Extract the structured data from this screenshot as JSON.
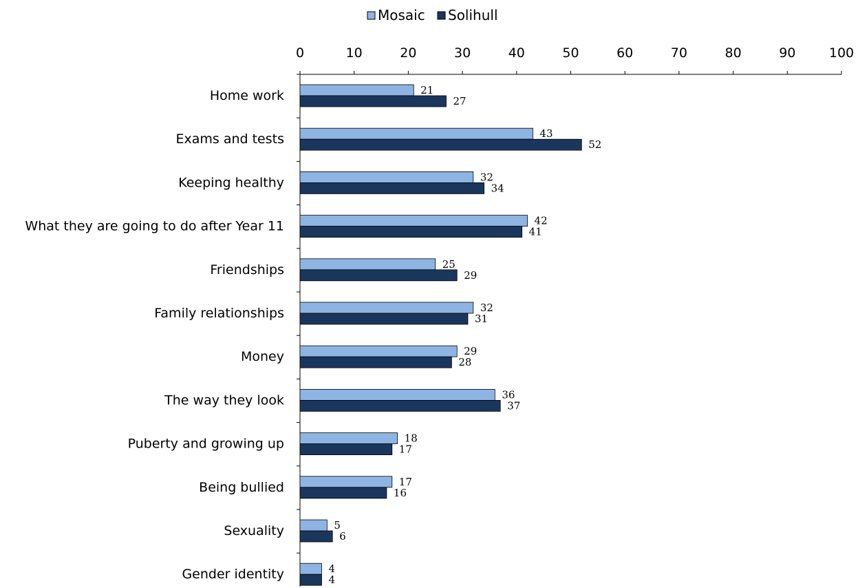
{
  "chart_data": {
    "type": "bar",
    "orientation": "horizontal",
    "categories": [
      "Home work",
      "Exams and tests",
      "Keeping healthy",
      "What they are going to do after Year 11",
      "Friendships",
      "Family relationships",
      "Money",
      "The way they look",
      "Puberty and growing up",
      "Being bullied",
      "Sexuality",
      "Gender identity"
    ],
    "series": [
      {
        "name": "Mosaic",
        "color": "#8EB4E3",
        "values": [
          21,
          43,
          32,
          42,
          25,
          32,
          29,
          36,
          18,
          17,
          5,
          4
        ]
      },
      {
        "name": "Solihull",
        "color": "#1B365D",
        "values": [
          27,
          52,
          34,
          41,
          29,
          31,
          28,
          37,
          17,
          16,
          6,
          4
        ]
      }
    ],
    "x_ticks": [
      0,
      10,
      20,
      30,
      40,
      50,
      60,
      70,
      80,
      90,
      100
    ],
    "xlim": [
      0,
      100
    ],
    "axis_position": "top",
    "grid": false,
    "legend_position": "top",
    "data_labels": true
  }
}
